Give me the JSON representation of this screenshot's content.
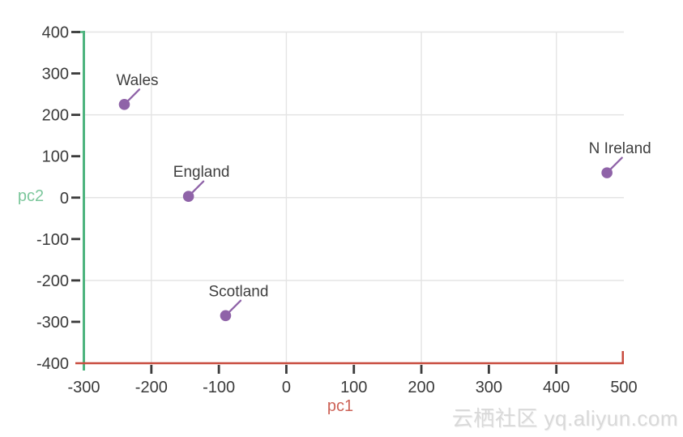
{
  "watermark": {
    "text": "云栖社区 yq.aliyun.com"
  },
  "chart_data": {
    "type": "scatter",
    "title": "",
    "xlabel": "pc1",
    "ylabel": "pc2",
    "xlim": [
      -300,
      500
    ],
    "ylim": [
      -400,
      400
    ],
    "x_ticks": [
      -300,
      -200,
      -100,
      0,
      100,
      200,
      300,
      400,
      500
    ],
    "y_ticks": [
      -400,
      -300,
      -200,
      -100,
      0,
      100,
      200,
      300,
      400
    ],
    "grid": true,
    "grid_step": 200,
    "legend": "none",
    "points": [
      {
        "label": "Wales",
        "x": -240,
        "y": 225
      },
      {
        "label": "England",
        "x": -145,
        "y": 3
      },
      {
        "label": "Scotland",
        "x": -90,
        "y": -285
      },
      {
        "label": "N Ireland",
        "x": 475,
        "y": 60
      }
    ],
    "colors": {
      "point": "#8f63a8",
      "point_label": "#3f3f3f",
      "x_axis": "#c84b3e",
      "y_axis": "#4eb47e",
      "xlabel_text": "#cd6257",
      "ylabel_text": "#7cc79c",
      "tick": "#3a3a3a",
      "tick_label": "#3a3a3a",
      "grid": "#e4e4e4",
      "watermark": "#d9d9d9",
      "background": "#ffffff"
    }
  }
}
